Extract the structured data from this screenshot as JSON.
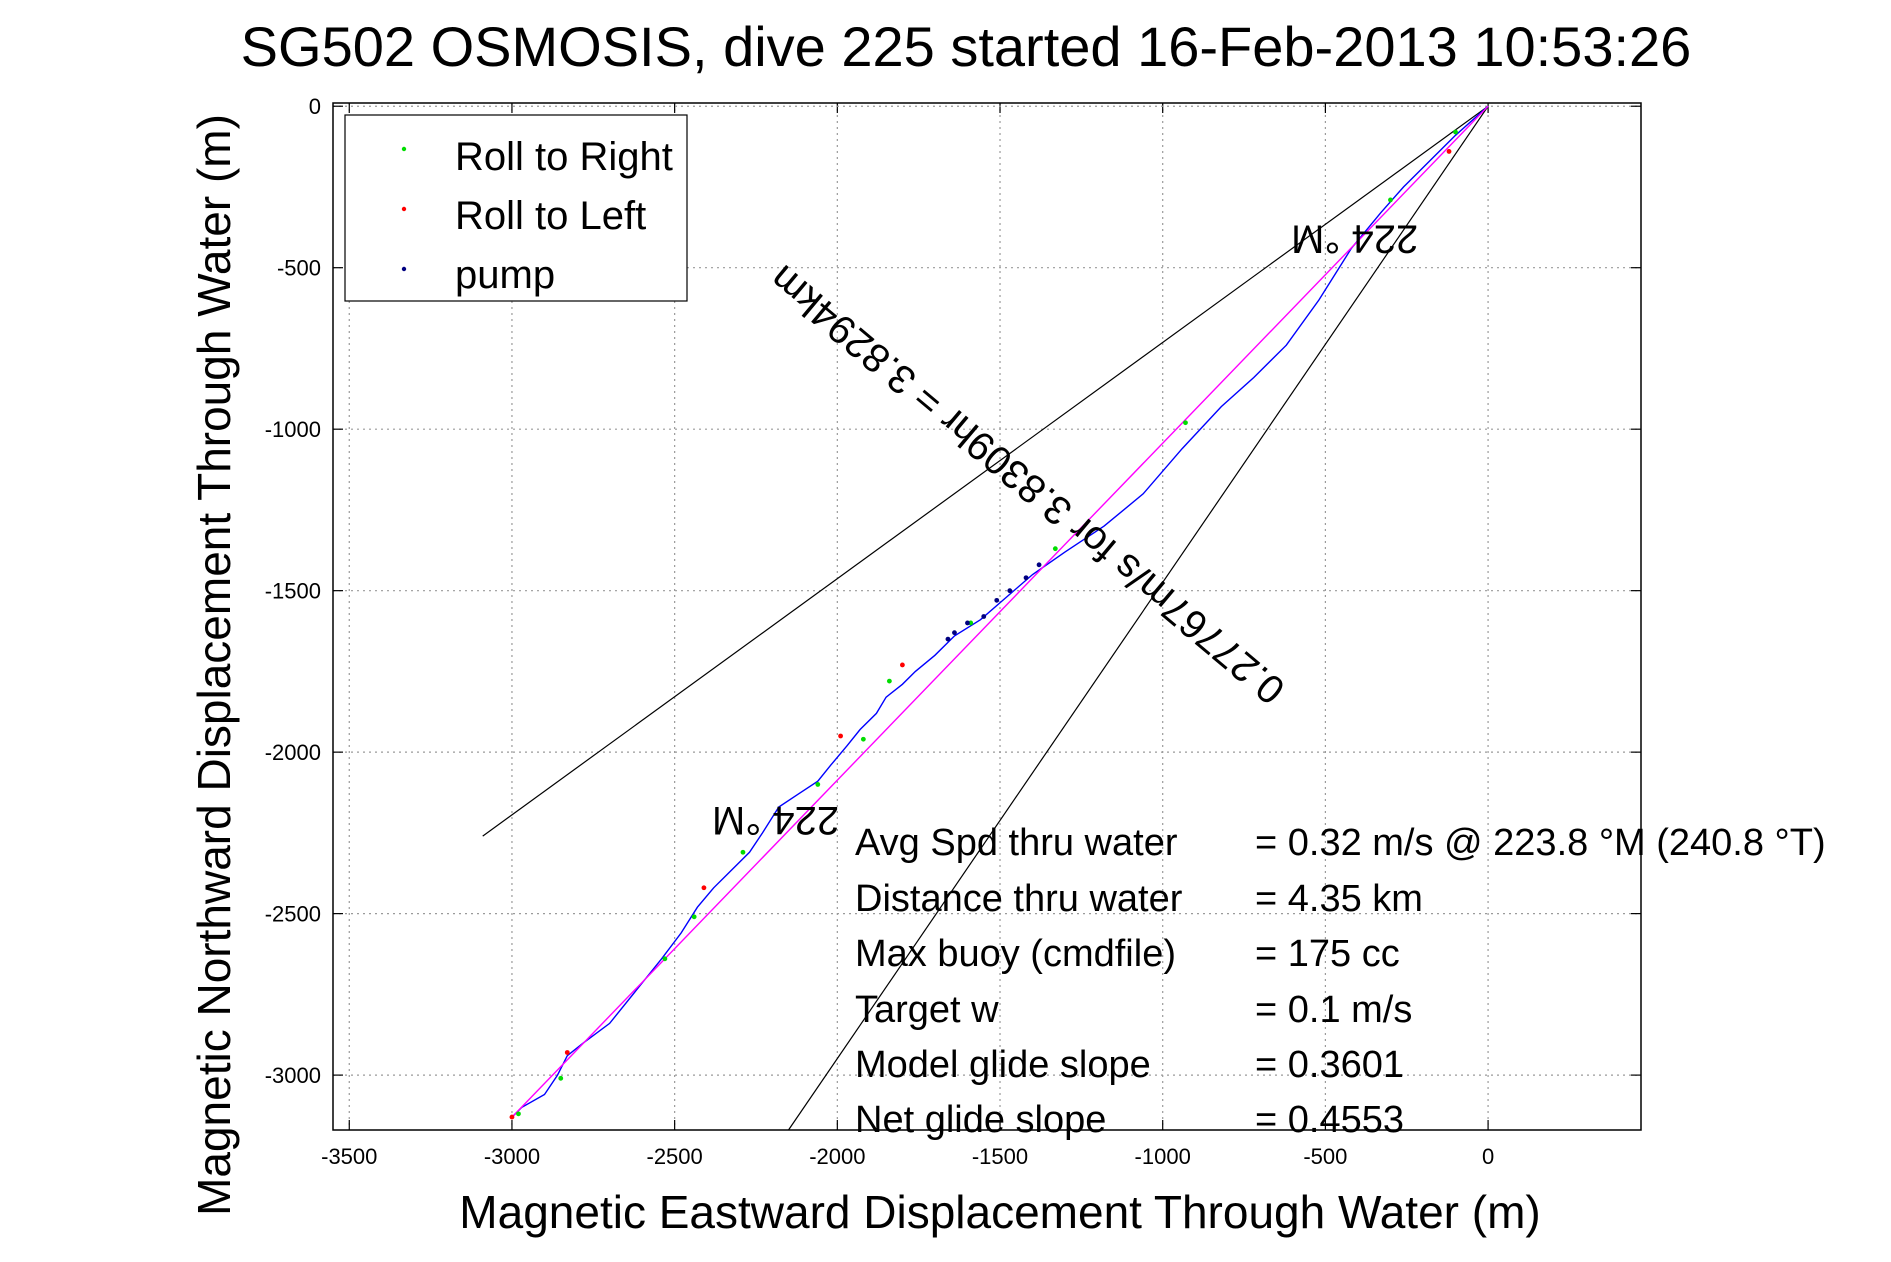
{
  "chart_data": {
    "type": "line",
    "title": "SG502 OSMOSIS, dive 225 started 16-Feb-2013 10:53:26",
    "xlabel": "Magnetic Eastward Displacement Through Water (m)",
    "ylabel": "Magnetic Northward Displacement Through Water (m)",
    "xlim": [
      -3550,
      470
    ],
    "ylim": [
      -3170,
      10
    ],
    "xticks": [
      -3500,
      -3000,
      -2500,
      -2000,
      -1500,
      -1000,
      -500,
      0
    ],
    "yticks": [
      0,
      -500,
      -1000,
      -1500,
      -2000,
      -2500,
      -3000
    ],
    "grid": true,
    "legend_position": "top-left",
    "legend": [
      {
        "name": "Roll to Right",
        "color": "#00dd00"
      },
      {
        "name": "Roll to Left",
        "color": "#ff0000"
      },
      {
        "name": "pump",
        "color": "#000080"
      }
    ],
    "series": [
      {
        "name": "track",
        "color": "#0000ff",
        "x": [
          0,
          -100,
          -180,
          -260,
          -330,
          -420,
          -520,
          -620,
          -720,
          -820,
          -940,
          -1060,
          -1180,
          -1300,
          -1400,
          -1480,
          -1560,
          -1640,
          -1700,
          -1760,
          -1800,
          -1850,
          -1880,
          -1930,
          -1970,
          -2020,
          -2060,
          -2120,
          -2180,
          -2230,
          -2270,
          -2330,
          -2380,
          -2430,
          -2480,
          -2540,
          -2620,
          -2700,
          -2780,
          -2830,
          -2860,
          -2900,
          -2970,
          -3000
        ],
        "y": [
          0,
          -90,
          -170,
          -250,
          -330,
          -440,
          -600,
          -740,
          -840,
          -930,
          -1060,
          -1200,
          -1300,
          -1380,
          -1450,
          -1520,
          -1590,
          -1640,
          -1700,
          -1750,
          -1790,
          -1830,
          -1880,
          -1930,
          -1980,
          -2040,
          -2090,
          -2130,
          -2170,
          -2250,
          -2310,
          -2370,
          -2420,
          -2480,
          -2560,
          -2640,
          -2740,
          -2840,
          -2900,
          -2940,
          -3000,
          -3060,
          -3100,
          -3130
        ]
      },
      {
        "name": "straight-line",
        "color": "#ff00ff",
        "x": [
          0,
          -3000
        ],
        "y": [
          0,
          -3130
        ]
      },
      {
        "name": "heading-line-1",
        "color": "#000000",
        "x": [
          0,
          -3090
        ],
        "y": [
          0,
          -2260
        ]
      },
      {
        "name": "heading-line-2",
        "color": "#000000",
        "x": [
          0,
          -2150
        ],
        "y": [
          0,
          -3170
        ]
      }
    ],
    "markers": {
      "roll_right": {
        "x": [
          -100,
          -300,
          -930,
          -1330,
          -1590,
          -1840,
          -1920,
          -2060,
          -2290,
          -2440,
          -2530,
          -2850,
          -2980
        ],
        "y": [
          -80,
          -290,
          -980,
          -1370,
          -1600,
          -1780,
          -1960,
          -2100,
          -2310,
          -2510,
          -2640,
          -3010,
          -3120
        ]
      },
      "roll_left": {
        "x": [
          -120,
          -1800,
          -1990,
          -2410,
          -2830,
          -3000
        ],
        "y": [
          -140,
          -1730,
          -1950,
          -2420,
          -2930,
          -3130
        ]
      },
      "pump": {
        "x": [
          -1380,
          -1420,
          -1470,
          -1510,
          -1550,
          -1600,
          -1640,
          -1660
        ],
        "y": [
          -1420,
          -1460,
          -1500,
          -1530,
          -1580,
          -1600,
          -1630,
          -1650
        ]
      }
    },
    "annotations": [
      {
        "text": "224 °M",
        "x": -2190,
        "y": -2170,
        "rotation": 180
      },
      {
        "text": "224 °M",
        "x": -410,
        "y": -370,
        "rotation": 180
      },
      {
        "text": "0.27767m/s for 3.8309hr = 3.8294km",
        "x": -1390,
        "y": -1140,
        "rotation": 220
      }
    ]
  },
  "stats": [
    {
      "label": "Avg Spd thru water",
      "value": "=  0.32 m/s @ 223.8 °M (240.8 °T)"
    },
    {
      "label": "Distance thru water",
      "value": "=  4.35 km"
    },
    {
      "label": "Max buoy (cmdfile)",
      "value": "= 175 cc"
    },
    {
      "label": "Target w",
      "value": "= 0.1 m/s"
    },
    {
      "label": "Model glide slope",
      "value": "= 0.3601"
    },
    {
      "label": "Net glide slope",
      "value": "= 0.4553"
    }
  ],
  "colors": {
    "background": "#ffffff",
    "axes": "#000000",
    "grid": "#9a9a9a"
  }
}
